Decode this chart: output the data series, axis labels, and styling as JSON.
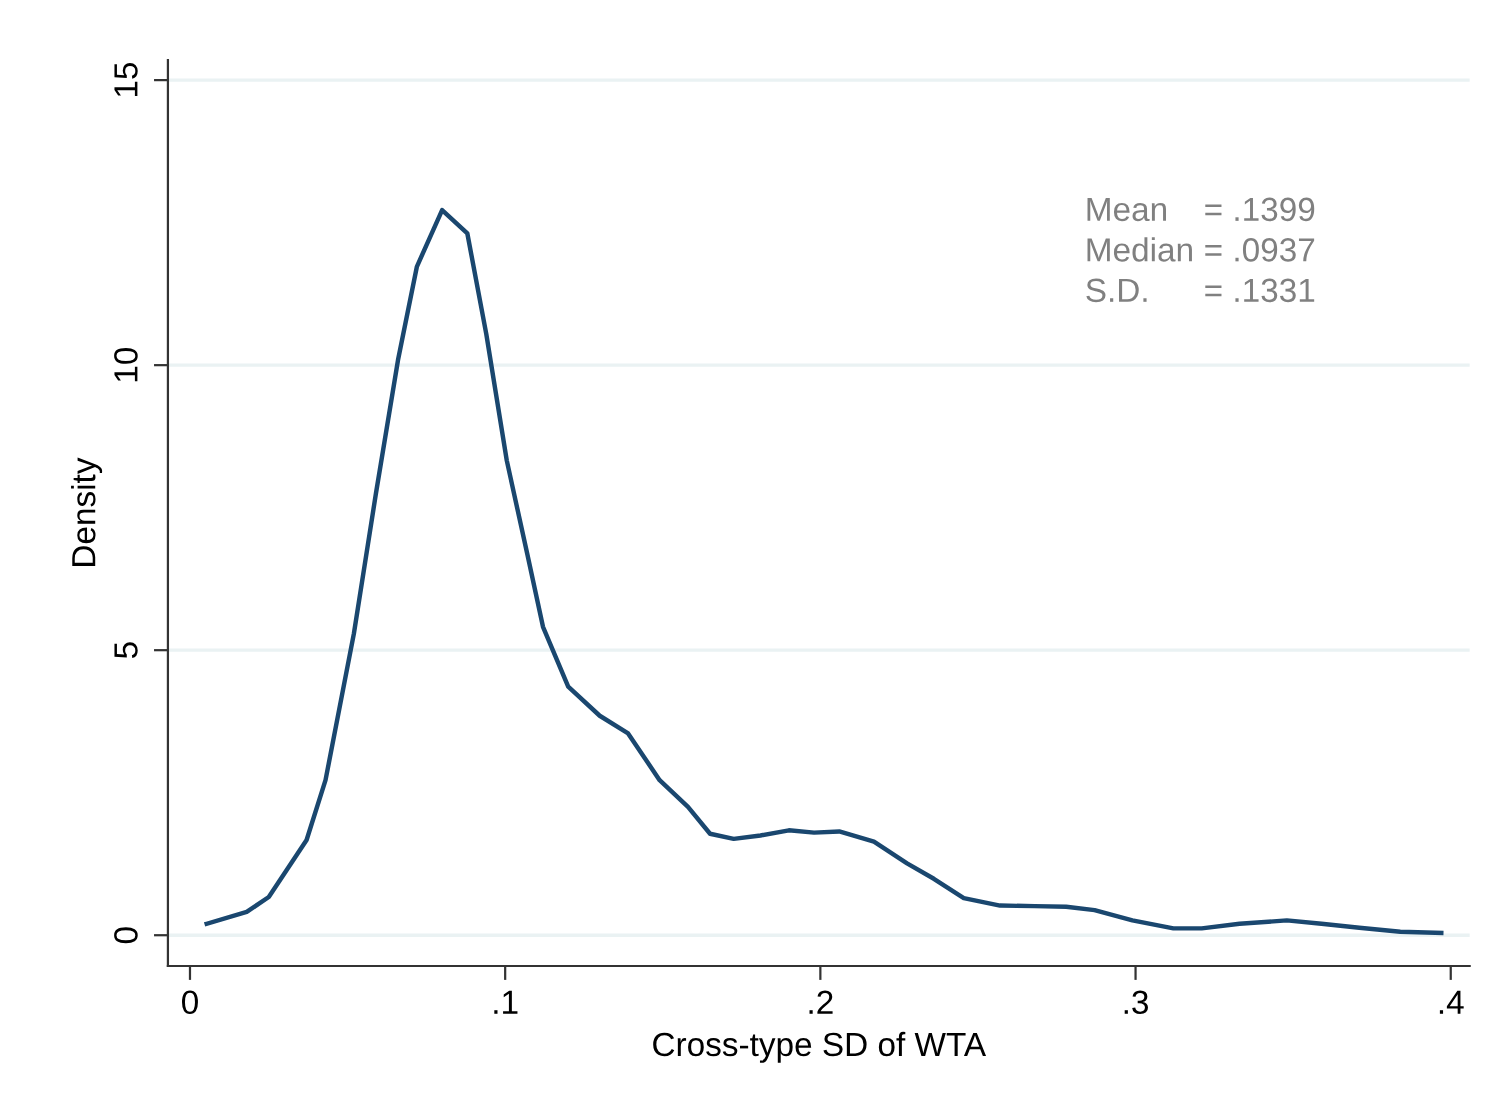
{
  "chart_data": {
    "type": "line",
    "xlabel": "Cross-type SD of WTA",
    "ylabel": "Density",
    "series": [
      {
        "color": "#1a476f",
        "x": [
          0.0053,
          0.018,
          0.025,
          0.037,
          0.043,
          0.052,
          0.059,
          0.066,
          0.072,
          0.08,
          0.088,
          0.094,
          0.1005,
          0.107,
          0.112,
          0.12,
          0.13,
          0.139,
          0.149,
          0.158,
          0.165,
          0.1725,
          0.181,
          0.19,
          0.198,
          0.206,
          0.217,
          0.2275,
          0.236,
          0.2455,
          0.257,
          0.268,
          0.278,
          0.287,
          0.299,
          0.312,
          0.321,
          0.333,
          0.348,
          0.359,
          0.371,
          0.384,
          0.397
        ],
        "values": [
          0.2,
          0.41,
          0.67,
          1.67,
          2.72,
          5.29,
          7.75,
          10.09,
          11.73,
          12.72,
          12.31,
          10.55,
          8.33,
          6.69,
          5.41,
          4.36,
          3.85,
          3.54,
          2.72,
          2.25,
          1.78,
          1.69,
          1.75,
          1.84,
          1.8,
          1.82,
          1.64,
          1.26,
          0.99,
          0.65,
          0.52,
          0.51,
          0.5,
          0.44,
          0.26,
          0.12,
          0.12,
          0.2,
          0.26,
          0.2,
          0.13,
          0.06,
          0.04
        ]
      }
    ],
    "xlim": [
      -0.007,
      0.406
    ],
    "ylim": [
      -0.54,
      15.35
    ],
    "xticks": [
      {
        "value": 0,
        "label": "0"
      },
      {
        "value": 0.1,
        "label": ".1"
      },
      {
        "value": 0.2,
        "label": ".2"
      },
      {
        "value": 0.3,
        "label": ".3"
      },
      {
        "value": 0.4,
        "label": ".4"
      }
    ],
    "yticks": [
      0,
      5,
      10,
      15
    ],
    "grid": "y",
    "marker": "none",
    "line_style": "solid",
    "legend": false,
    "annotations": [
      "Mean = .1399",
      "Median = .0937",
      "S.D. = .1331"
    ]
  }
}
